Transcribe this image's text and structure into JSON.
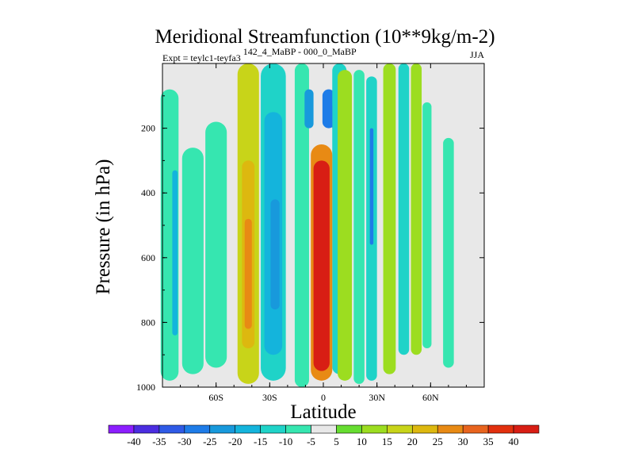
{
  "chart_data": {
    "type": "contour",
    "title": "Meridional Streamfunction (10**9kg/m-2)",
    "subtitle_left": "Expt = teylc1-teyfa3",
    "subtitle_left_super": "142_4_MaBP - 000_0_MaBP",
    "subtitle_right": "JJA",
    "xlabel": "Latitude",
    "ylabel": "Pressure (in hPa)",
    "xlim": [
      -90,
      90
    ],
    "ylim": [
      1000,
      0
    ],
    "x_ticks": [
      -60,
      -30,
      0,
      30,
      60
    ],
    "x_tick_labels": [
      "60S",
      "30S",
      "0",
      "30N",
      "60N"
    ],
    "y_ticks": [
      200,
      400,
      600,
      800,
      1000
    ],
    "y_tick_labels": [
      "200",
      "400",
      "600",
      "800",
      "1000"
    ],
    "levels": [
      -40,
      -35,
      -30,
      -25,
      -20,
      -15,
      -10,
      -5,
      5,
      10,
      15,
      20,
      25,
      30,
      35,
      40
    ],
    "level_labels": [
      "-40",
      "-35",
      "-30",
      "-25",
      "-20",
      "-15",
      "-10",
      "-5",
      "5",
      "10",
      "15",
      "20",
      "25",
      "30",
      "35",
      "40"
    ],
    "colors": [
      "#8c1eff",
      "#4b2de0",
      "#2f5ae6",
      "#1e7ce8",
      "#1899dc",
      "#14b4dc",
      "#1fd3c8",
      "#36e6b0",
      "#e8e8e8",
      "#66dd30",
      "#9cdd20",
      "#c8d419",
      "#ddb80f",
      "#e88a14",
      "#e8641e",
      "#e2300e",
      "#d81e14"
    ],
    "features": [
      {
        "lat": -86,
        "p0": 80,
        "p1": 980,
        "value": -10,
        "width": 10
      },
      {
        "lat": -83,
        "p0": 330,
        "p1": 840,
        "value": -20,
        "width": 3
      },
      {
        "lat": -73,
        "p0": 260,
        "p1": 960,
        "value": -10,
        "width": 12
      },
      {
        "lat": -60,
        "p0": 180,
        "p1": 940,
        "value": -8,
        "width": 12
      },
      {
        "lat": -42,
        "p0": 0,
        "p1": 990,
        "value": 15,
        "width": 12
      },
      {
        "lat": -42,
        "p0": 300,
        "p1": 880,
        "value": 20,
        "width": 7
      },
      {
        "lat": -42,
        "p0": 480,
        "p1": 820,
        "value": 25,
        "width": 4
      },
      {
        "lat": -28,
        "p0": 0,
        "p1": 980,
        "value": -15,
        "width": 14
      },
      {
        "lat": -28,
        "p0": 150,
        "p1": 900,
        "value": -20,
        "width": 10
      },
      {
        "lat": -27,
        "p0": 420,
        "p1": 760,
        "value": -25,
        "width": 5
      },
      {
        "lat": -12,
        "p0": 0,
        "p1": 1000,
        "value": -10,
        "width": 8
      },
      {
        "lat": -8,
        "p0": 80,
        "p1": 200,
        "value": -25,
        "width": 5
      },
      {
        "lat": 3,
        "p0": 80,
        "p1": 200,
        "value": -30,
        "width": 7
      },
      {
        "lat": 7,
        "p0": 120,
        "p1": 210,
        "value": -38,
        "width": 4
      },
      {
        "lat": 9,
        "p0": 0,
        "p1": 960,
        "value": -15,
        "width": 8
      },
      {
        "lat": 12,
        "p0": 20,
        "p1": 980,
        "value": 12,
        "width": 8
      },
      {
        "lat": 20,
        "p0": 20,
        "p1": 990,
        "value": -10,
        "width": 6
      },
      {
        "lat": 27,
        "p0": 40,
        "p1": 980,
        "value": -15,
        "width": 6
      },
      {
        "lat": 27,
        "p0": 200,
        "p1": 560,
        "value": -30,
        "width": 2
      },
      {
        "lat": 37,
        "p0": 0,
        "p1": 960,
        "value": 12,
        "width": 7
      },
      {
        "lat": 45,
        "p0": 0,
        "p1": 900,
        "value": -12,
        "width": 6
      },
      {
        "lat": 52,
        "p0": 0,
        "p1": 900,
        "value": 10,
        "width": 6
      },
      {
        "lat": 58,
        "p0": 120,
        "p1": 880,
        "value": -8,
        "width": 5
      },
      {
        "lat": 70,
        "p0": 230,
        "p1": 940,
        "value": -8,
        "width": 6
      },
      {
        "lat": -1,
        "p0": 250,
        "p1": 980,
        "value": 25,
        "width": 12
      },
      {
        "lat": -1,
        "p0": 300,
        "p1": 950,
        "value": 40,
        "width": 9
      }
    ]
  }
}
